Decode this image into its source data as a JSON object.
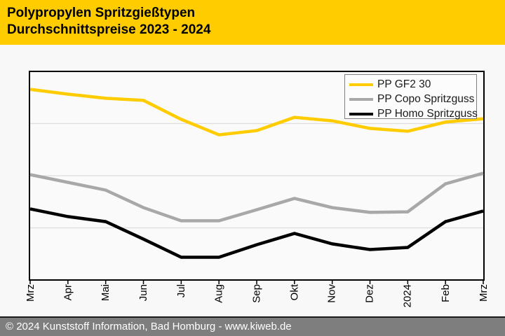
{
  "header": {
    "title_line1": "Polypropylen Spritzgießtypen",
    "title_line2": "Durchschnittspreise 2023 - 2024",
    "background_color": "#ffcc00",
    "text_color": "#000000"
  },
  "chart_data": {
    "type": "line",
    "title": "Polypropylen Spritzgießtypen Durchschnittspreise 2023 - 2024",
    "categories": [
      "Mrz",
      "Apr",
      "Mai",
      "Jun",
      "Jul",
      "Aug",
      "Sep",
      "Okt",
      "Nov",
      "Dez",
      "2024",
      "Feb",
      "Mrz"
    ],
    "series": [
      {
        "name": "PP GF2 30",
        "color": "#ffcc00",
        "values": [
          91.4,
          89.1,
          87.1,
          86.1,
          77.0,
          69.6,
          71.6,
          78.0,
          76.3,
          72.7,
          71.3,
          75.7,
          77.3
        ]
      },
      {
        "name": "PP Copo Spritzguss",
        "color": "#a8a8a8",
        "values": [
          50.5,
          46.8,
          43.1,
          34.7,
          28.4,
          28.4,
          33.7,
          39.1,
          34.7,
          32.4,
          32.7,
          46.1,
          51.2
        ]
      },
      {
        "name": "PP Homo Spritzguss",
        "color": "#000000",
        "values": [
          34.1,
          30.4,
          28.0,
          19.6,
          10.9,
          10.9,
          16.9,
          22.3,
          17.3,
          14.6,
          15.6,
          28.0,
          33.1
        ]
      }
    ],
    "xlabel": "",
    "ylabel": "",
    "ylim": [
      0,
      100
    ],
    "y_axis_unlabeled": true,
    "y_values_are_normalized_percent_of_plot_height": true,
    "gridline_values": [
      75,
      50,
      25
    ],
    "gridline_color": "#dddddd",
    "grid": "horizontal-only",
    "legend_position": "top-right",
    "plot_background": "#fafafa",
    "axis_color": "#000000"
  },
  "footer": {
    "text": "© 2024 Kunststoff Information, Bad Homburg - www.kiweb.de",
    "background_color": "#7e7e7e",
    "text_color": "#ffffff"
  }
}
